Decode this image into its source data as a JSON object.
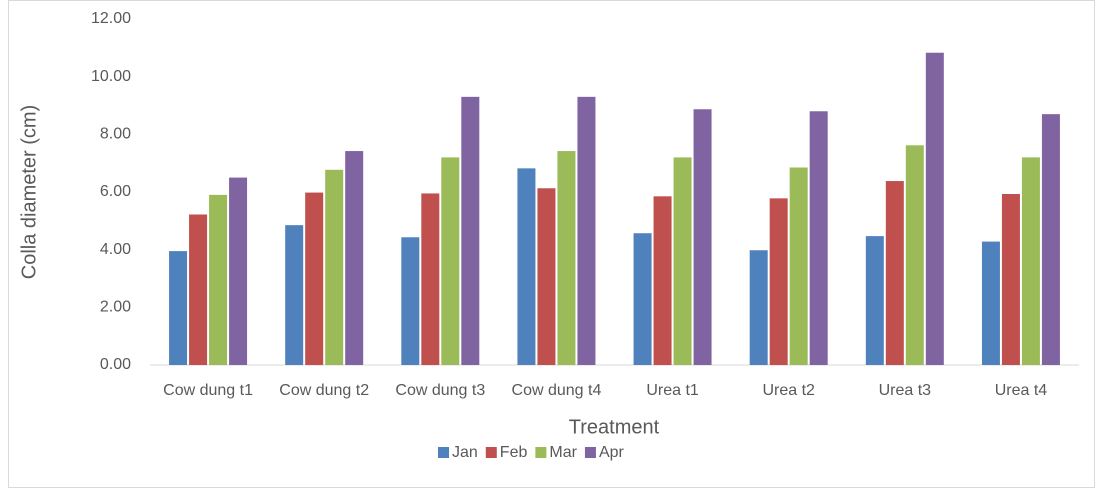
{
  "chart_data": {
    "type": "bar",
    "x_label": "Treatment",
    "y_label": "Colla diameter (cm)",
    "categories": [
      "Cow dung t1",
      "Cow dung t2",
      "Cow dung t3",
      "Cow dung t4",
      "Urea t1",
      "Urea t2",
      "Urea t3",
      "Urea t4"
    ],
    "series": [
      {
        "name": "Jan",
        "color": "#4f81bd",
        "values": [
          3.95,
          4.85,
          4.43,
          6.82,
          4.57,
          3.98,
          4.47,
          4.28
        ]
      },
      {
        "name": "Feb",
        "color": "#c0504d",
        "values": [
          5.22,
          5.98,
          5.95,
          6.13,
          5.85,
          5.78,
          6.38,
          5.93
        ]
      },
      {
        "name": "Mar",
        "color": "#9bbb59",
        "values": [
          5.9,
          6.77,
          7.2,
          7.42,
          7.2,
          6.85,
          7.62,
          7.2
        ]
      },
      {
        "name": "Apr",
        "color": "#8064a2",
        "values": [
          6.5,
          7.42,
          9.3,
          9.3,
          8.87,
          8.8,
          10.83,
          8.7
        ]
      }
    ],
    "ylim": [
      0,
      12
    ],
    "yticks": [
      {
        "value": 0,
        "label": "0.00"
      },
      {
        "value": 2,
        "label": "2.00"
      },
      {
        "value": 4,
        "label": "4.00"
      },
      {
        "value": 6,
        "label": "6.00"
      },
      {
        "value": 8,
        "label": "8.00"
      },
      {
        "value": 10,
        "label": "10.00"
      },
      {
        "value": 12,
        "label": "12.00"
      }
    ],
    "grid": false,
    "legend": "bottom"
  }
}
